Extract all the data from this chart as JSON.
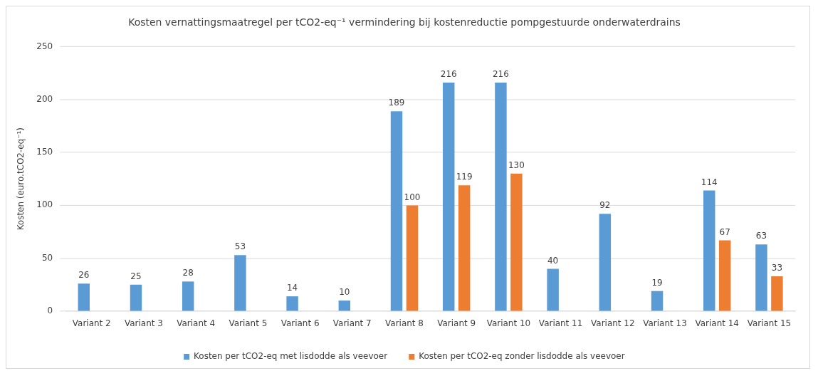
{
  "chart_data": {
    "type": "bar",
    "title": "Kosten vernattingsmaatregel per tCO2-eq⁻¹ vermindering bij kostenreductie pompgestuurde onderwaterdrains",
    "ylabel": "Kosten (euro.tCO2-eq⁻¹)",
    "categories": [
      "Variant 2",
      "Variant 3",
      "Variant 4",
      "Variant 5",
      "Variant 6",
      "Variant 7",
      "Variant 8",
      "Variant 9",
      "Variant 10",
      "Variant 11",
      "Variant 12",
      "Variant 13",
      "Variant 14",
      "Variant 15"
    ],
    "series": [
      {
        "name": "Kosten per tCO2-eq met lisdodde als veevoer",
        "color": "#5b9bd5",
        "values": [
          26,
          25,
          28,
          53,
          14,
          10,
          189,
          216,
          216,
          40,
          92,
          19,
          114,
          63
        ]
      },
      {
        "name": "Kosten per tCO2-eq zonder lisdodde als veevoer",
        "color": "#ed7d31",
        "values": [
          null,
          null,
          null,
          null,
          null,
          null,
          100,
          119,
          130,
          null,
          null,
          null,
          67,
          33
        ]
      }
    ],
    "ylim": [
      0,
      250
    ],
    "yticks": [
      0,
      50,
      100,
      150,
      200,
      250
    ],
    "grid": "y",
    "legend": "bottom",
    "data_labels": true
  }
}
